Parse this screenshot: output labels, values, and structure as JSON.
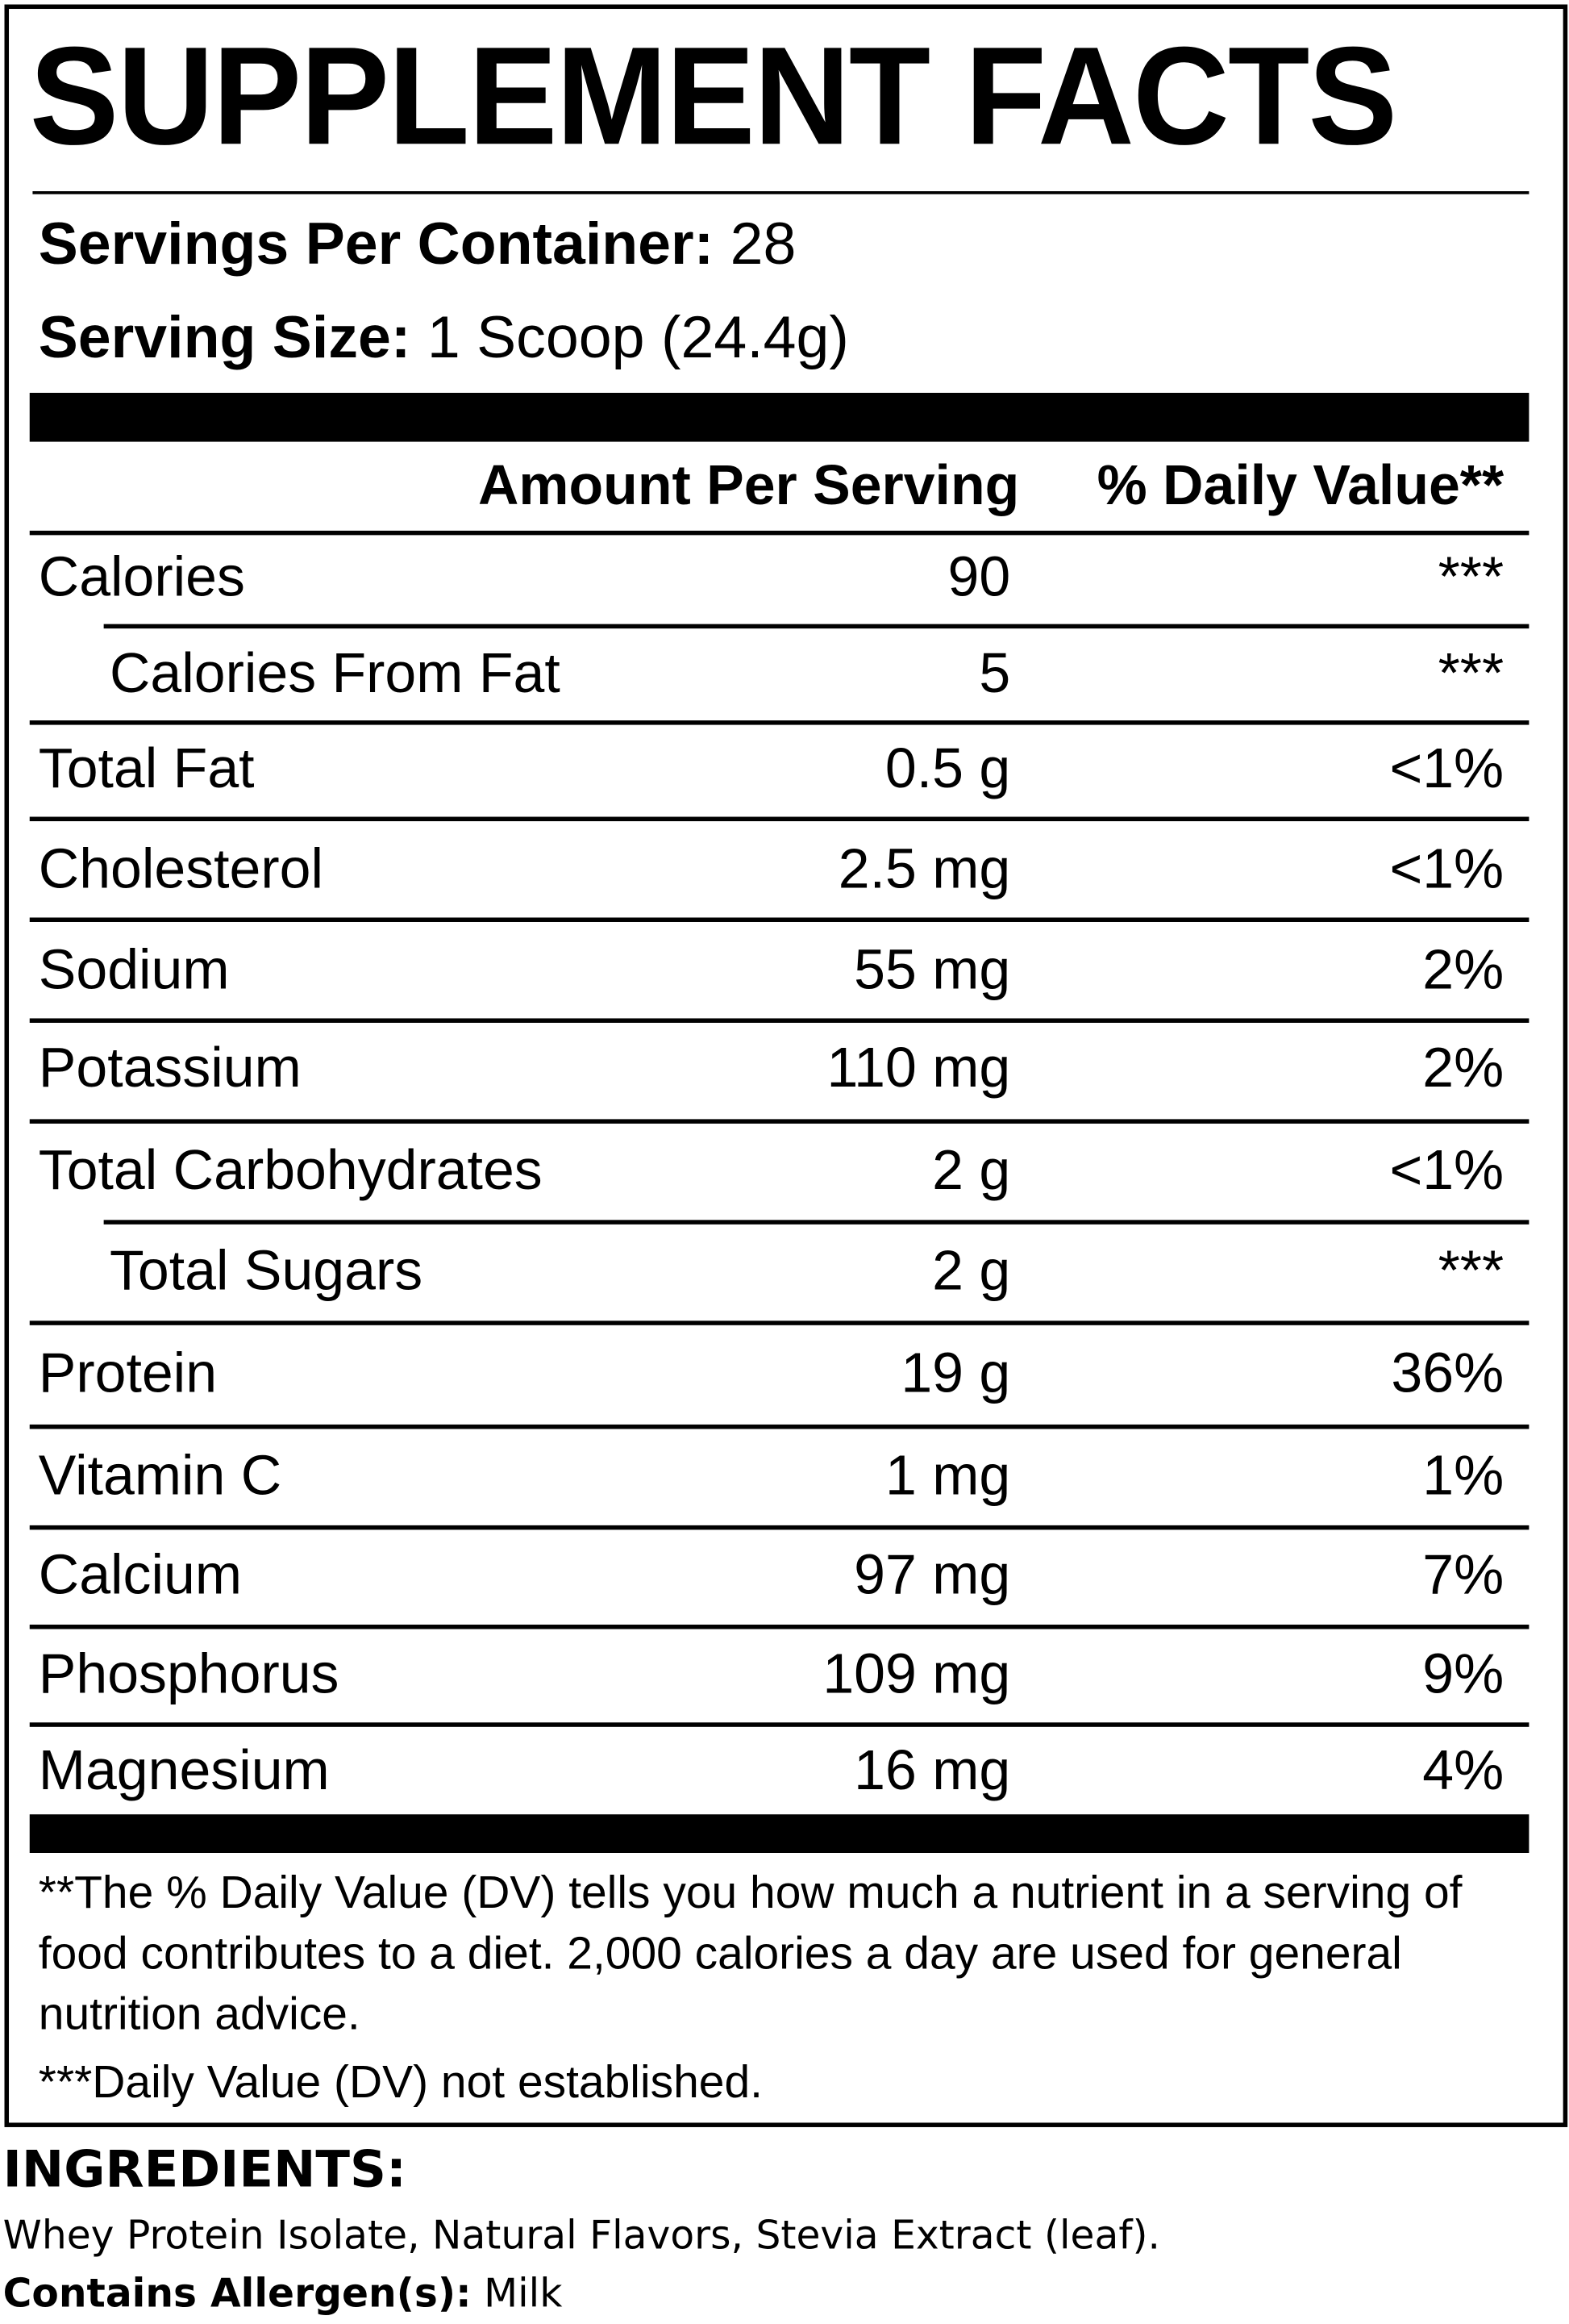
{
  "title": "SUPPLEMENT FACTS",
  "servings": {
    "label": "Servings Per Container:",
    "value": "28"
  },
  "serving_size": {
    "label": "Serving Size:",
    "value": "1 Scoop (24.4g)"
  },
  "header": {
    "amount": "Amount Per Serving",
    "daily_value": "% Daily Value**"
  },
  "rows": [
    {
      "name": "Calories",
      "amount": "90",
      "daily_value": "***"
    },
    {
      "name": "Calories From Fat",
      "amount": "5",
      "daily_value": "***"
    },
    {
      "name": "Total Fat",
      "amount": "0.5 g",
      "daily_value": "<1%"
    },
    {
      "name": "Cholesterol",
      "amount": "2.5 mg",
      "daily_value": "<1%"
    },
    {
      "name": "Sodium",
      "amount": "55 mg",
      "daily_value": "2%"
    },
    {
      "name": "Potassium",
      "amount": "110 mg",
      "daily_value": "2%"
    },
    {
      "name": "Total Carbohydrates",
      "amount": "2 g",
      "daily_value": "<1%"
    },
    {
      "name": "Total Sugars",
      "amount": "2 g",
      "daily_value": "***"
    },
    {
      "name": "Protein",
      "amount": "19 g",
      "daily_value": "36%"
    },
    {
      "name": "Vitamin C",
      "amount": "1 mg",
      "daily_value": "1%"
    },
    {
      "name": "Calcium",
      "amount": "97 mg",
      "daily_value": "7%"
    },
    {
      "name": "Phosphorus",
      "amount": "109 mg",
      "daily_value": "9%"
    },
    {
      "name": "Magnesium",
      "amount": "16 mg",
      "daily_value": "4%"
    }
  ],
  "footnotes": [
    "**The % Daily Value (DV) tells you how much a nutrient in a serving of food contributes to a diet. 2,000 calories a day are used for general nutrition advice.",
    "***Daily Value (DV) not established."
  ],
  "ingredients": {
    "heading": "INGREDIENTS:",
    "text": "Whey Protein Isolate, Natural Flavors, Stevia Extract (leaf).",
    "allergen_label": "Contains Allergen(s):",
    "allergen_value": "Milk"
  }
}
